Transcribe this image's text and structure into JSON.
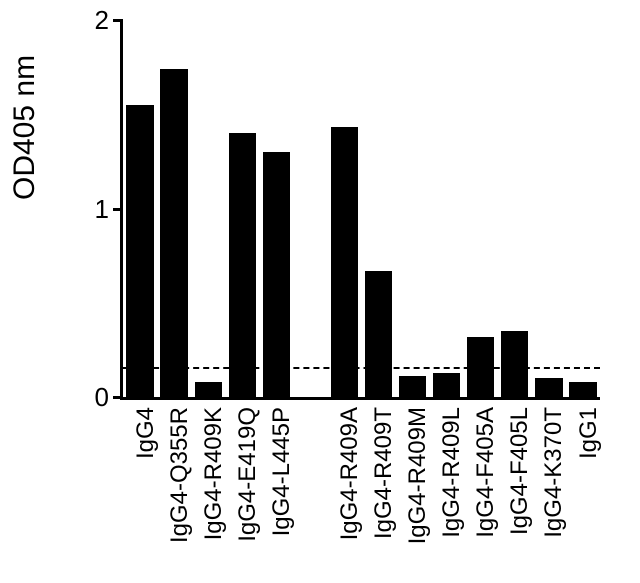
{
  "chart": {
    "type": "bar",
    "ylabel": "OD405 nm",
    "ylabel_fontsize": 30,
    "ylim": [
      0,
      2
    ],
    "ytick_step": 1,
    "yticks": [
      0,
      1,
      2
    ],
    "ytick_fontsize": 26,
    "reference_line_value": 0.16,
    "reference_line_style": "dashed",
    "reference_line_color": "#000000",
    "background_color": "#ffffff",
    "axis_color": "#000000",
    "bar_color": "#000000",
    "bar_width": 0.8,
    "xlabel_fontsize": 24,
    "categories": [
      "IgG4",
      "IgG4-Q355R",
      "IgG4-R409K",
      "IgG4-E419Q",
      "IgG4-L445P",
      "",
      "IgG4-R409A",
      "IgG4-R409T",
      "IgG4-R409M",
      "IgG4-R409L",
      "IgG4-F405A",
      "IgG4-F405L",
      "IgG4-K370T",
      "IgG1"
    ],
    "values": [
      1.55,
      1.74,
      0.08,
      1.4,
      1.3,
      null,
      1.43,
      0.67,
      0.11,
      0.13,
      0.32,
      0.35,
      0.1,
      0.08
    ]
  }
}
